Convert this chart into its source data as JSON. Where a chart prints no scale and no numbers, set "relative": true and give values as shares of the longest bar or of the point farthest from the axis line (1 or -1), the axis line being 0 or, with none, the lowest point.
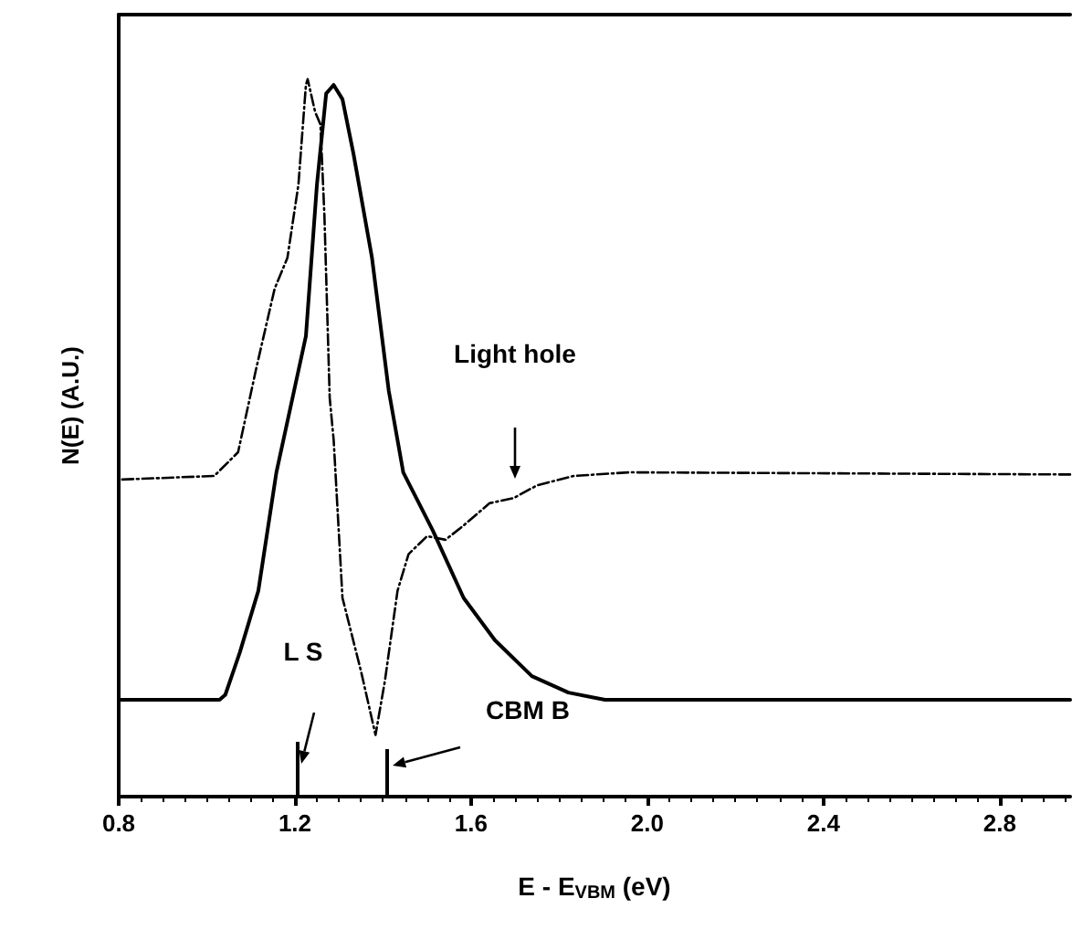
{
  "chart_data": {
    "type": "line",
    "relative": true,
    "xlabel": "E - E$_{VBM}$ (eV)",
    "ylabel": "N(E) (A.U.)",
    "xlim": [
      0.8,
      2.96
    ],
    "xticks": [
      {
        "value": 0.8,
        "label": "0.8"
      },
      {
        "value": 1.2,
        "label": "1.2"
      },
      {
        "value": 1.6,
        "label": "1.6"
      },
      {
        "value": 2,
        "label": "2.0"
      },
      {
        "value": 2.4,
        "label": "2.4"
      },
      {
        "value": 2.8,
        "label": "2.8"
      }
    ],
    "tick_labels": "x",
    "grid": false,
    "marker": "none",
    "series": [
      {
        "color": "#000000",
        "line_style": "solid",
        "x": [
          0.8,
          1.029,
          1.042,
          1.075,
          1.117,
          1.158,
          1.225,
          1.25,
          1.271,
          1.288,
          1.308,
          1.333,
          1.375,
          1.413,
          1.446,
          1.513,
          1.583,
          1.654,
          1.738,
          1.821,
          1.904,
          2.96
        ],
        "values": [
          0.135,
          0.135,
          0.142,
          0.201,
          0.287,
          0.452,
          0.642,
          0.853,
          0.98,
          0.992,
          0.972,
          0.896,
          0.751,
          0.566,
          0.452,
          0.371,
          0.277,
          0.218,
          0.168,
          0.145,
          0.135,
          0.135
        ]
      },
      {
        "color": "#000000",
        "line_style": "dashed",
        "x": [
          0.808,
          1.017,
          1.071,
          1.113,
          1.154,
          1.183,
          1.208,
          1.225,
          1.229,
          1.246,
          1.258,
          1.267,
          1.279,
          1.288,
          1.308,
          1.35,
          1.383,
          1.404,
          1.433,
          1.458,
          1.5,
          1.542,
          1.583,
          1.642,
          1.696,
          1.75,
          1.833,
          1.958,
          2.96
        ],
        "values": [
          0.442,
          0.447,
          0.48,
          0.599,
          0.708,
          0.751,
          0.853,
          0.992,
          1,
          0.954,
          0.937,
          0.81,
          0.556,
          0.497,
          0.277,
          0.175,
          0.086,
          0.16,
          0.287,
          0.338,
          0.363,
          0.358,
          0.378,
          0.409,
          0.416,
          0.434,
          0.447,
          0.452,
          0.449
        ]
      }
    ],
    "annotations": [
      "Light hole",
      "L S",
      "CBM B"
    ]
  }
}
